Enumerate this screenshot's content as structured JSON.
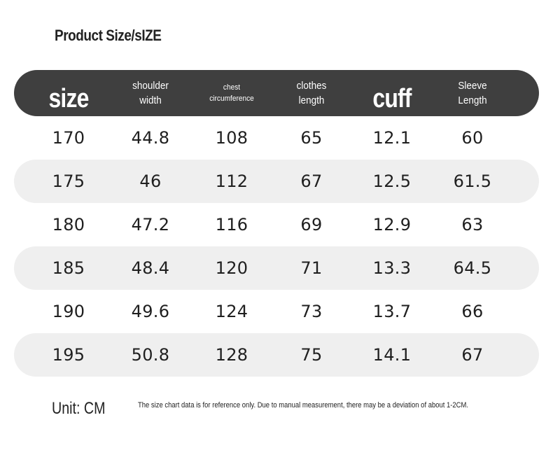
{
  "title": "Product Size/sIZE",
  "headers": {
    "size": "size",
    "shoulder": "shoulder\nwidth",
    "chest": "chest\ncircumference",
    "clothes": "clothes\nlength",
    "cuff": "cuff",
    "sleeve": "Sleeve\nLength"
  },
  "rows": [
    [
      "170",
      "44.8",
      "108",
      "65",
      "12.1",
      "60"
    ],
    [
      "175",
      "46",
      "112",
      "67",
      "12.5",
      "61.5"
    ],
    [
      "180",
      "47.2",
      "116",
      "69",
      "12.9",
      "63"
    ],
    [
      "185",
      "48.4",
      "120",
      "71",
      "13.3",
      "64.5"
    ],
    [
      "190",
      "49.6",
      "124",
      "73",
      "13.7",
      "66"
    ],
    [
      "195",
      "50.8",
      "128",
      "75",
      "14.1",
      "67"
    ]
  ],
  "footer": {
    "unit": "Unit: CM",
    "note": "The size chart data is for reference only. Due to manual measurement, there may be a deviation of about 1-2CM."
  }
}
